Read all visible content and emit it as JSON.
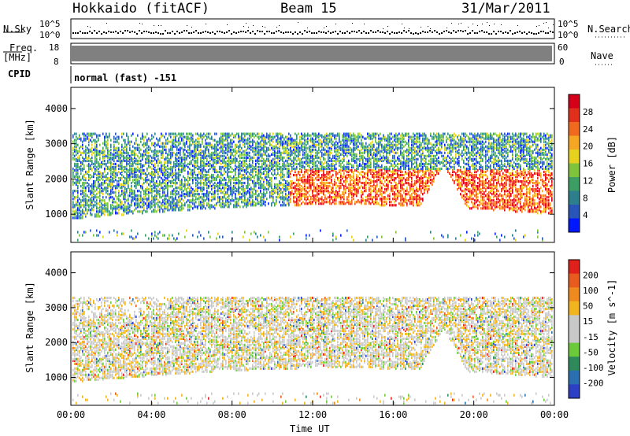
{
  "header": {
    "radar": "Hokkaido (fitACF)",
    "beam": "Beam 15",
    "date": "31/Mar/2011"
  },
  "panels": {
    "nsky_label": "N.Sky",
    "nsearch_label": "N.Search",
    "nsky_ticks": [
      "10^5",
      "10^0"
    ],
    "nsearch_ticks": [
      "10^5",
      "10^0"
    ],
    "freq_label": "Freq.",
    "freq_unit": "[MHz]",
    "freq_ticks": [
      "18",
      "8"
    ],
    "nave_label": "Nave",
    "nave_ticks": [
      "60",
      "0"
    ],
    "cpid_label": "CPID",
    "cpid_value": "normal (fast) -151"
  },
  "colors": {
    "power_scale": [
      "#0018ff",
      "#2a55b8",
      "#2e7f8c",
      "#3c9e63",
      "#7fc23c",
      "#e6d21e",
      "#f5a623",
      "#ef6a1f",
      "#e0301c",
      "#d4001a"
    ],
    "velocity_scale": [
      "#2d3fc4",
      "#2a6fb0",
      "#2e8a5a",
      "#6cc93a",
      "#c8c8c8",
      "#c8c8c8",
      "#f0b41e",
      "#ef8a1e",
      "#e85a1e",
      "#e0201a"
    ]
  },
  "chart_data": [
    {
      "type": "heatmap",
      "name": "Power",
      "xlabel": "Time UT",
      "ylabel": "Slant Range [km]",
      "x_ticks": [
        "00:00",
        "04:00",
        "08:00",
        "12:00",
        "16:00",
        "20:00",
        "00:00"
      ],
      "y_ticks": [
        "1000",
        "2000",
        "3000",
        "4000"
      ],
      "ylim": [
        200,
        4600
      ],
      "colorbar_label": "Power [dB]",
      "colorbar_ticks": [
        "4",
        "8",
        "12",
        "16",
        "20",
        "24",
        "28"
      ],
      "colorbar_range": [
        0,
        30
      ]
    },
    {
      "type": "heatmap",
      "name": "Velocity",
      "xlabel": "Time UT",
      "ylabel": "Slant Range [km]",
      "x_ticks": [
        "00:00",
        "04:00",
        "08:00",
        "12:00",
        "16:00",
        "20:00",
        "00:00"
      ],
      "y_ticks": [
        "1000",
        "2000",
        "3000",
        "4000"
      ],
      "ylim": [
        200,
        4600
      ],
      "colorbar_label": "Velocity [m s^-1]",
      "colorbar_ticks": [
        "200",
        "100",
        "50",
        "15",
        "-15",
        "-50",
        "-100",
        "-200"
      ],
      "colorbar_range": [
        -250,
        250
      ]
    }
  ]
}
